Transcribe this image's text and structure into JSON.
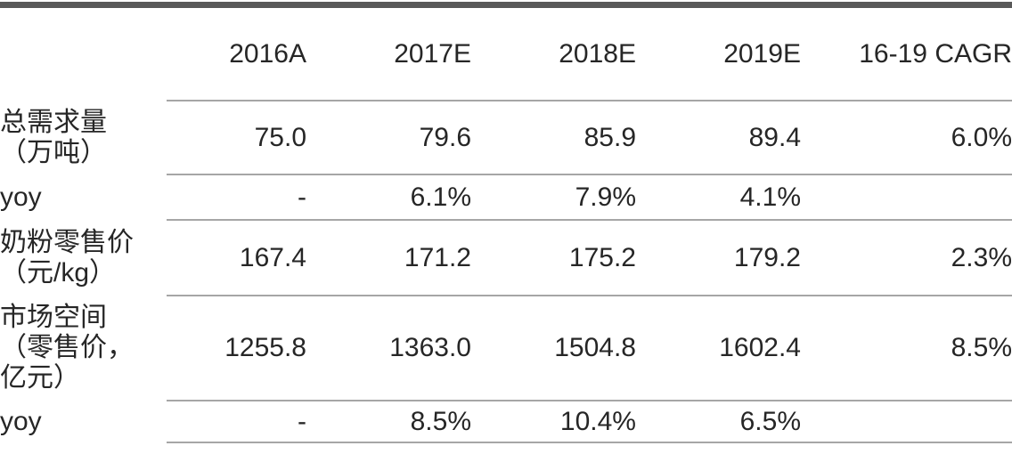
{
  "chart_data": {
    "type": "table",
    "columns": [
      "",
      "2016A",
      "2017E",
      "2018E",
      "2019E",
      "16-19 CAGR"
    ],
    "rows": [
      {
        "label": "总需求量\n（万吨）",
        "values": [
          "75.0",
          "79.6",
          "85.9",
          "89.4",
          "6.0%"
        ]
      },
      {
        "label": "yoy",
        "values": [
          "-",
          "6.1%",
          "7.9%",
          "4.1%",
          ""
        ]
      },
      {
        "label": "奶粉零售价\n（元/kg）",
        "values": [
          "167.4",
          "171.2",
          "175.2",
          "179.2",
          "2.3%"
        ]
      },
      {
        "label": "市场空间\n（零售价，\n亿元）",
        "values": [
          "1255.8",
          "1363.0",
          "1504.8",
          "1602.4",
          "8.5%"
        ]
      },
      {
        "label": "yoy",
        "values": [
          "-",
          "8.5%",
          "10.4%",
          "6.5%",
          ""
        ]
      }
    ],
    "layout": {
      "grid": "horizontal rules between rows, data columns only",
      "value_alignment": "right",
      "label_alignment": "left"
    }
  },
  "colors": {
    "text": "#262626",
    "thin_rule": "#a6a6a6",
    "thick_top_rule": "#595959",
    "background": "#ffffff"
  }
}
